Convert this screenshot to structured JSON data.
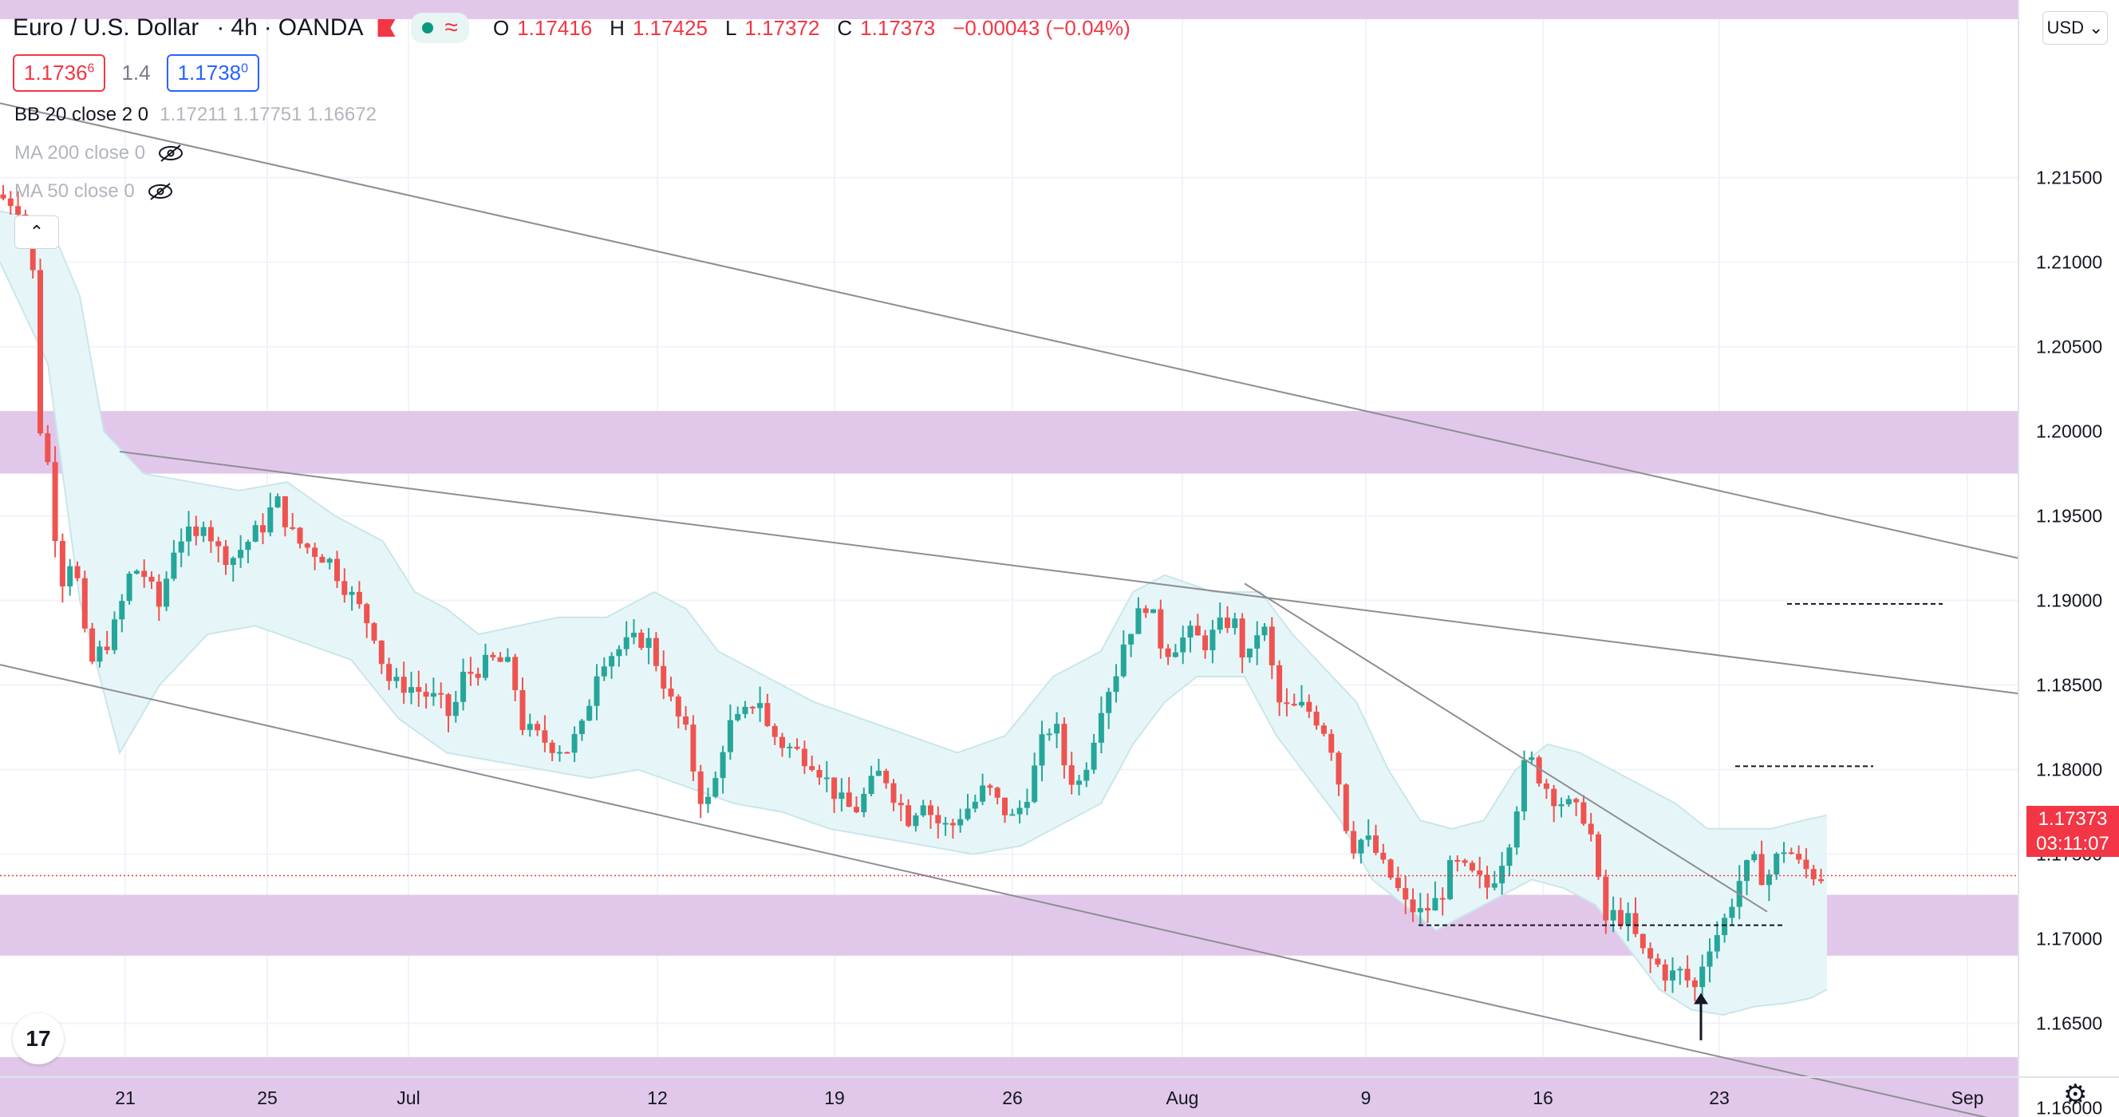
{
  "header": {
    "symbol": "Euro / U.S. Dollar",
    "interval": "4h",
    "exchange": "OANDA",
    "wave_glyph": "≈",
    "ohlc": {
      "o_label": "O",
      "o": "1.17416",
      "h_label": "H",
      "h": "1.17425",
      "l_label": "L",
      "l": "1.17372",
      "c_label": "C",
      "c": "1.17373",
      "change": "−0.00043 (−0.04%)"
    }
  },
  "quote": {
    "sell_main": "1.1736",
    "sell_sup": "6",
    "spread": "1.4",
    "buy_main": "1.1738",
    "buy_sup": "0"
  },
  "indicators": [
    {
      "name": "BB 20 close 2 0",
      "values": "1.17211  1.17751  1.16672",
      "hidden": false
    },
    {
      "name": "MA 200 close 0",
      "values": "",
      "hidden": true
    },
    {
      "name": "MA 50 close 0",
      "values": "",
      "hidden": true
    }
  ],
  "collapse_glyph": "⌃",
  "logo_text": "17",
  "currency": {
    "label": "USD",
    "chevron": "⌄"
  },
  "settings_glyph": "⚙",
  "price_tag": {
    "price": "1.17373",
    "countdown": "03:11:07"
  },
  "colors": {
    "up": "#26a69a",
    "down": "#ef5350",
    "zone": "#e1c8ea",
    "band_fill": "#e6f6f8",
    "band_line": "#c9e6ea",
    "grid": "#f0f3fa",
    "trendline": "#8e8e93",
    "last_price": "#f23645"
  },
  "chart_data": {
    "type": "candlestick",
    "symbol": "EURUSD",
    "timeframe": "4h",
    "y_range": [
      1.1585,
      1.2255
    ],
    "y_ticks": [
      "1.21500",
      "1.21000",
      "1.20500",
      "1.20000",
      "1.19500",
      "1.19000",
      "1.18500",
      "1.18000",
      "1.17500",
      "1.17000",
      "1.16500",
      "1.16000"
    ],
    "x_ticks": [
      "21",
      "25",
      "Jul",
      "12",
      "19",
      "26",
      "Aug",
      "9",
      "16",
      "23",
      "Sep"
    ],
    "last_price": 1.17373,
    "price_path": [
      [
        0,
        1.214
      ],
      [
        30,
        1.2135
      ],
      [
        48,
        1.2118
      ],
      [
        60,
        1.2
      ],
      [
        68,
        1.1985
      ],
      [
        75,
        1.196
      ],
      [
        82,
        1.192
      ],
      [
        90,
        1.191
      ],
      [
        100,
        1.193
      ],
      [
        110,
        1.19
      ],
      [
        120,
        1.186
      ],
      [
        135,
        1.187
      ],
      [
        150,
        1.188
      ],
      [
        160,
        1.1895
      ],
      [
        175,
        1.192
      ],
      [
        190,
        1.1915
      ],
      [
        210,
        1.1895
      ],
      [
        225,
        1.193
      ],
      [
        240,
        1.194
      ],
      [
        255,
        1.1935
      ],
      [
        265,
        1.195
      ],
      [
        280,
        1.193
      ],
      [
        300,
        1.1925
      ],
      [
        320,
        1.1935
      ],
      [
        340,
        1.1945
      ],
      [
        355,
        1.196
      ],
      [
        365,
        1.195
      ],
      [
        380,
        1.1935
      ],
      [
        400,
        1.193
      ],
      [
        420,
        1.1925
      ],
      [
        440,
        1.191
      ],
      [
        460,
        1.1895
      ],
      [
        480,
        1.188
      ],
      [
        490,
        1.186
      ],
      [
        500,
        1.185
      ],
      [
        520,
        1.185
      ],
      [
        540,
        1.1845
      ],
      [
        560,
        1.184
      ],
      [
        575,
        1.183
      ],
      [
        590,
        1.1855
      ],
      [
        610,
        1.186
      ],
      [
        630,
        1.1865
      ],
      [
        650,
        1.186
      ],
      [
        665,
        1.1825
      ],
      [
        680,
        1.182
      ],
      [
        700,
        1.1815
      ],
      [
        720,
        1.1812
      ],
      [
        740,
        1.1825
      ],
      [
        760,
        1.1865
      ],
      [
        780,
        1.187
      ],
      [
        800,
        1.1875
      ],
      [
        820,
        1.1878
      ],
      [
        835,
        1.186
      ],
      [
        850,
        1.184
      ],
      [
        870,
        1.182
      ],
      [
        885,
        1.1785
      ],
      [
        900,
        1.178
      ],
      [
        920,
        1.1825
      ],
      [
        940,
        1.183
      ],
      [
        960,
        1.1845
      ],
      [
        970,
        1.1825
      ],
      [
        990,
        1.1815
      ],
      [
        1010,
        1.181
      ],
      [
        1030,
        1.1805
      ],
      [
        1050,
        1.179
      ],
      [
        1065,
        1.178
      ],
      [
        1080,
        1.1775
      ],
      [
        1100,
        1.179
      ],
      [
        1115,
        1.18
      ],
      [
        1130,
        1.1785
      ],
      [
        1150,
        1.177
      ],
      [
        1165,
        1.1785
      ],
      [
        1180,
        1.177
      ],
      [
        1200,
        1.1765
      ],
      [
        1215,
        1.1775
      ],
      [
        1230,
        1.178
      ],
      [
        1245,
        1.179
      ],
      [
        1260,
        1.178
      ],
      [
        1280,
        1.177
      ],
      [
        1300,
        1.179
      ],
      [
        1315,
        1.1815
      ],
      [
        1330,
        1.183
      ],
      [
        1345,
        1.18
      ],
      [
        1360,
        1.179
      ],
      [
        1375,
        1.181
      ],
      [
        1390,
        1.184
      ],
      [
        1400,
        1.185
      ],
      [
        1410,
        1.186
      ],
      [
        1420,
        1.188
      ],
      [
        1435,
        1.189
      ],
      [
        1450,
        1.1902
      ],
      [
        1458,
        1.188
      ],
      [
        1470,
        1.187
      ],
      [
        1485,
        1.1875
      ],
      [
        1500,
        1.188
      ],
      [
        1520,
        1.1875
      ],
      [
        1540,
        1.1885
      ],
      [
        1555,
        1.189
      ],
      [
        1565,
        1.187
      ],
      [
        1575,
        1.1865
      ],
      [
        1590,
        1.189
      ],
      [
        1600,
        1.187
      ],
      [
        1610,
        1.184
      ],
      [
        1625,
        1.1835
      ],
      [
        1645,
        1.1837
      ],
      [
        1660,
        1.183
      ],
      [
        1675,
        1.182
      ],
      [
        1685,
        1.18
      ],
      [
        1695,
        1.177
      ],
      [
        1705,
        1.1755
      ],
      [
        1720,
        1.176
      ],
      [
        1735,
        1.175
      ],
      [
        1745,
        1.174
      ],
      [
        1755,
        1.1735
      ],
      [
        1770,
        1.172
      ],
      [
        1790,
        1.1715
      ],
      [
        1805,
        1.172
      ],
      [
        1815,
        1.1725
      ],
      [
        1830,
        1.1745
      ],
      [
        1845,
        1.174
      ],
      [
        1860,
        1.1735
      ],
      [
        1875,
        1.173
      ],
      [
        1890,
        1.1745
      ],
      [
        1905,
        1.1765
      ],
      [
        1918,
        1.18
      ],
      [
        1928,
        1.1805
      ],
      [
        1940,
        1.1795
      ],
      [
        1955,
        1.1785
      ],
      [
        1970,
        1.178
      ],
      [
        1985,
        1.1775
      ],
      [
        2000,
        1.1772
      ],
      [
        2010,
        1.174
      ],
      [
        2020,
        1.171
      ],
      [
        2035,
        1.1715
      ],
      [
        2050,
        1.171
      ],
      [
        2060,
        1.17
      ],
      [
        2070,
        1.169
      ],
      [
        2085,
        1.1685
      ],
      [
        2100,
        1.1678
      ],
      [
        2115,
        1.168
      ],
      [
        2125,
        1.1675
      ],
      [
        2135,
        1.167
      ],
      [
        2145,
        1.169
      ],
      [
        2155,
        1.17
      ],
      [
        2165,
        1.1705
      ],
      [
        2175,
        1.1715
      ],
      [
        2185,
        1.173
      ],
      [
        2195,
        1.174
      ],
      [
        2210,
        1.1745
      ],
      [
        2220,
        1.1735
      ],
      [
        2230,
        1.174
      ],
      [
        2240,
        1.1752
      ],
      [
        2250,
        1.1755
      ],
      [
        2260,
        1.1745
      ],
      [
        2268,
        1.1742
      ],
      [
        2276,
        1.174
      ],
      [
        2284,
        1.1738
      ],
      [
        2290,
        1.1737
      ]
    ],
    "bollinger": {
      "upper": [
        [
          0,
          1.213
        ],
        [
          60,
          1.2125
        ],
        [
          100,
          1.208
        ],
        [
          130,
          1.2
        ],
        [
          180,
          1.1975
        ],
        [
          240,
          1.197
        ],
        [
          300,
          1.1965
        ],
        [
          360,
          1.197
        ],
        [
          420,
          1.195
        ],
        [
          480,
          1.1935
        ],
        [
          520,
          1.1905
        ],
        [
          560,
          1.1895
        ],
        [
          600,
          1.188
        ],
        [
          650,
          1.1885
        ],
        [
          700,
          1.189
        ],
        [
          760,
          1.189
        ],
        [
          820,
          1.1905
        ],
        [
          860,
          1.1895
        ],
        [
          900,
          1.187
        ],
        [
          960,
          1.1855
        ],
        [
          1020,
          1.184
        ],
        [
          1080,
          1.183
        ],
        [
          1140,
          1.182
        ],
        [
          1200,
          1.181
        ],
        [
          1260,
          1.182
        ],
        [
          1320,
          1.1855
        ],
        [
          1380,
          1.187
        ],
        [
          1420,
          1.1905
        ],
        [
          1460,
          1.1915
        ],
        [
          1520,
          1.1905
        ],
        [
          1580,
          1.1905
        ],
        [
          1620,
          1.188
        ],
        [
          1660,
          1.186
        ],
        [
          1700,
          1.184
        ],
        [
          1740,
          1.18
        ],
        [
          1780,
          1.177
        ],
        [
          1820,
          1.1765
        ],
        [
          1860,
          1.177
        ],
        [
          1900,
          1.18
        ],
        [
          1940,
          1.1815
        ],
        [
          1980,
          1.181
        ],
        [
          2020,
          1.18
        ],
        [
          2060,
          1.179
        ],
        [
          2100,
          1.178
        ],
        [
          2140,
          1.1765
        ],
        [
          2180,
          1.1765
        ],
        [
          2220,
          1.1765
        ],
        [
          2260,
          1.177
        ],
        [
          2290,
          1.1773
        ]
      ],
      "lower": [
        [
          0,
          1.21
        ],
        [
          60,
          1.204
        ],
        [
          100,
          1.19
        ],
        [
          150,
          1.181
        ],
        [
          200,
          1.185
        ],
        [
          260,
          1.188
        ],
        [
          320,
          1.1885
        ],
        [
          380,
          1.1875
        ],
        [
          440,
          1.1865
        ],
        [
          500,
          1.183
        ],
        [
          560,
          1.181
        ],
        [
          620,
          1.1805
        ],
        [
          680,
          1.18
        ],
        [
          740,
          1.1795
        ],
        [
          800,
          1.18
        ],
        [
          860,
          1.179
        ],
        [
          920,
          1.178
        ],
        [
          980,
          1.1775
        ],
        [
          1040,
          1.1765
        ],
        [
          1100,
          1.176
        ],
        [
          1160,
          1.1755
        ],
        [
          1220,
          1.175
        ],
        [
          1280,
          1.1755
        ],
        [
          1320,
          1.1765
        ],
        [
          1380,
          1.178
        ],
        [
          1420,
          1.1815
        ],
        [
          1460,
          1.184
        ],
        [
          1500,
          1.1855
        ],
        [
          1560,
          1.1855
        ],
        [
          1600,
          1.182
        ],
        [
          1640,
          1.1795
        ],
        [
          1680,
          1.177
        ],
        [
          1720,
          1.1735
        ],
        [
          1760,
          1.172
        ],
        [
          1800,
          1.1705
        ],
        [
          1840,
          1.1715
        ],
        [
          1880,
          1.1725
        ],
        [
          1920,
          1.1735
        ],
        [
          1960,
          1.173
        ],
        [
          2000,
          1.172
        ],
        [
          2040,
          1.1695
        ],
        [
          2080,
          1.167
        ],
        [
          2120,
          1.1658
        ],
        [
          2160,
          1.1655
        ],
        [
          2200,
          1.166
        ],
        [
          2240,
          1.1662
        ],
        [
          2270,
          1.1665
        ],
        [
          2290,
          1.167
        ]
      ]
    },
    "zones": [
      [
        1.1975,
        1.2012
      ],
      [
        1.169,
        1.1726
      ],
      [
        1.159,
        1.163
      ]
    ],
    "top_zone_band": true,
    "trendlines": [
      [
        [
          0,
          1.2194
        ],
        [
          2530,
          1.1925
        ]
      ],
      [
        [
          150,
          1.1988
        ],
        [
          2530,
          1.1845
        ]
      ],
      [
        [
          0,
          1.1862
        ],
        [
          2530,
          1.159
        ]
      ],
      [
        [
          1560,
          1.191
        ],
        [
          2215,
          1.1716
        ]
      ]
    ],
    "dashed_levels": [
      [
        2240,
        2435,
        1.1898
      ],
      [
        2175,
        2348,
        1.1802
      ],
      [
        1778,
        2235,
        1.1708
      ]
    ],
    "arrow_marker": [
      2132,
      1.164,
      1.1668
    ]
  }
}
